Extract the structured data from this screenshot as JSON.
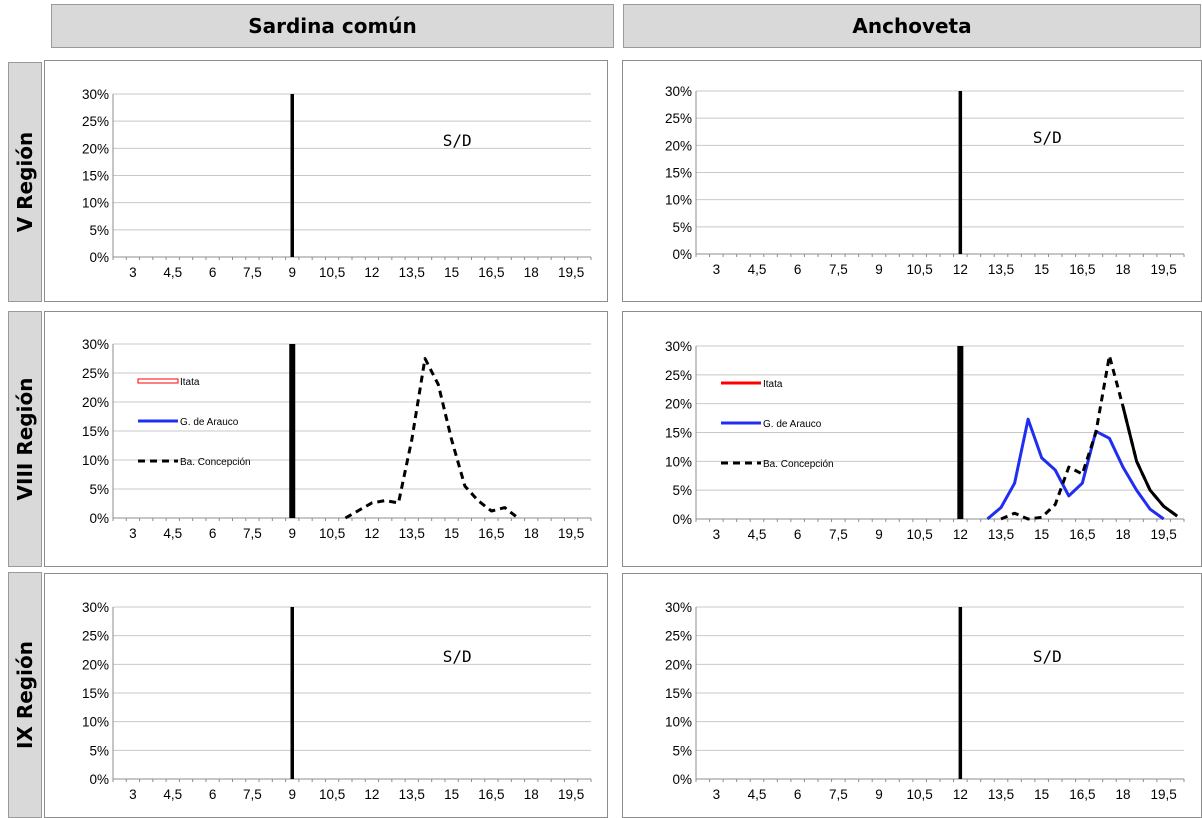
{
  "columns": [
    {
      "label": "Sardina común"
    },
    {
      "label": "Anchoveta"
    }
  ],
  "rows": [
    {
      "label": "V Región"
    },
    {
      "label": "VIII Región"
    },
    {
      "label": "IX Región"
    }
  ],
  "colors": {
    "itata": "#ff0000",
    "arauco": "#1f2ef0",
    "concepcion": "#000000"
  },
  "chart_data": [
    {
      "id": "sardina-v",
      "type": "line",
      "title": "Sardina común",
      "row": "V Región",
      "x_ticks": [
        "3",
        "4,5",
        "6",
        "7,5",
        "9",
        "10,5",
        "12",
        "13,5",
        "15",
        "16,5",
        "18",
        "19,5"
      ],
      "y_ticks": [
        "0%",
        "5%",
        "10%",
        "15%",
        "20%",
        "25%",
        "30%"
      ],
      "ylim": [
        0,
        30
      ],
      "reference_line_x": 9,
      "annotation": "S/D",
      "legend": [],
      "series": []
    },
    {
      "id": "anchoveta-v",
      "type": "line",
      "title": "Anchoveta",
      "row": "V Región",
      "x_ticks": [
        "3",
        "4,5",
        "6",
        "7,5",
        "9",
        "10,5",
        "12",
        "13,5",
        "15",
        "16,5",
        "18",
        "19,5"
      ],
      "y_ticks": [
        "0%",
        "5%",
        "10%",
        "15%",
        "20%",
        "25%",
        "30%"
      ],
      "ylim": [
        0,
        30
      ],
      "reference_line_x": 12,
      "annotation": "S/D",
      "legend": [],
      "series": []
    },
    {
      "id": "sardina-viii",
      "type": "line",
      "title": "Sardina común",
      "row": "VIII Región",
      "x_ticks": [
        "3",
        "4,5",
        "6",
        "7,5",
        "9",
        "10,5",
        "12",
        "13,5",
        "15",
        "16,5",
        "18",
        "19,5"
      ],
      "y_ticks": [
        "0%",
        "5%",
        "10%",
        "15%",
        "20%",
        "25%",
        "30%"
      ],
      "ylim": [
        0,
        30
      ],
      "reference_line_x": 9,
      "annotation": "",
      "legend_style": "outline",
      "legend": [
        {
          "name": "Itata",
          "series": "itata"
        },
        {
          "name": "G. de Arauco",
          "series": "arauco"
        },
        {
          "name": "Ba. Concepción",
          "series": "concepcion"
        }
      ],
      "series": [
        {
          "name": "Ba. Concepción",
          "key": "concepcion",
          "dash": true,
          "x": [
            11,
            11.5,
            12,
            12.5,
            13,
            13.5,
            14,
            14.5,
            15,
            15.5,
            16,
            16.5,
            17,
            17.5
          ],
          "y": [
            0,
            1.3,
            2.6,
            3.0,
            2.6,
            13.5,
            27.5,
            23.0,
            13.5,
            5.5,
            3.0,
            1.2,
            1.8,
            0
          ]
        }
      ]
    },
    {
      "id": "anchoveta-viii",
      "type": "line",
      "title": "Anchoveta",
      "row": "VIII Región",
      "x_ticks": [
        "3",
        "4,5",
        "6",
        "7,5",
        "9",
        "10,5",
        "12",
        "13,5",
        "15",
        "16,5",
        "18",
        "19,5"
      ],
      "y_ticks": [
        "0%",
        "5%",
        "10%",
        "15%",
        "20%",
        "25%",
        "30%"
      ],
      "ylim": [
        0,
        30
      ],
      "reference_line_x": 12,
      "annotation": "",
      "legend_style": "solid",
      "legend": [
        {
          "name": "Itata",
          "series": "itata"
        },
        {
          "name": "G. de Arauco",
          "series": "arauco"
        },
        {
          "name": "Ba. Concepción",
          "series": "concepcion"
        }
      ],
      "series": [
        {
          "name": "G. de Arauco",
          "key": "arauco",
          "dash": false,
          "x": [
            13,
            13.5,
            14,
            14.5,
            15,
            15.5,
            16,
            16.5,
            17,
            17.5,
            18,
            18.5,
            19,
            19.5
          ],
          "y": [
            0,
            2.0,
            6.2,
            17.3,
            10.6,
            8.5,
            4.0,
            6.2,
            15.2,
            14.0,
            9.0,
            5.0,
            1.7,
            0
          ]
        },
        {
          "name": "Ba. Concepción",
          "key": "concepcion",
          "dash": true,
          "x": [
            13.5,
            14,
            14.5,
            15,
            15.5,
            16,
            16.5,
            17,
            17.5,
            18,
            18.5,
            19,
            19.5,
            20
          ],
          "y": [
            0,
            1.0,
            0,
            0.3,
            2.5,
            9.0,
            7.8,
            15.0,
            28.3,
            19.5,
            10.0,
            5.0,
            2.2,
            0.5
          ]
        },
        {
          "name": "Ba. Concepción (fin)",
          "key": "concepcion",
          "dash": false,
          "x": [
            18,
            18.5,
            19,
            19.5,
            20
          ],
          "y": [
            19.5,
            10.0,
            5.0,
            2.2,
            0.5
          ]
        }
      ]
    },
    {
      "id": "sardina-ix",
      "type": "line",
      "title": "Sardina común",
      "row": "IX Región",
      "x_ticks": [
        "3",
        "4,5",
        "6",
        "7,5",
        "9",
        "10,5",
        "12",
        "13,5",
        "15",
        "16,5",
        "18",
        "19,5"
      ],
      "y_ticks": [
        "0%",
        "5%",
        "10%",
        "15%",
        "20%",
        "25%",
        "30%"
      ],
      "ylim": [
        0,
        30
      ],
      "reference_line_x": 9,
      "annotation": "S/D",
      "legend": [],
      "series": []
    },
    {
      "id": "anchoveta-ix",
      "type": "line",
      "title": "Anchoveta",
      "row": "IX Región",
      "x_ticks": [
        "3",
        "4,5",
        "6",
        "7,5",
        "9",
        "10,5",
        "12",
        "13,5",
        "15",
        "16,5",
        "18",
        "19,5"
      ],
      "y_ticks": [
        "0%",
        "5%",
        "10%",
        "15%",
        "20%",
        "25%",
        "30%"
      ],
      "ylim": [
        0,
        30
      ],
      "reference_line_x": 12,
      "annotation": "S/D",
      "legend": [],
      "series": []
    }
  ]
}
